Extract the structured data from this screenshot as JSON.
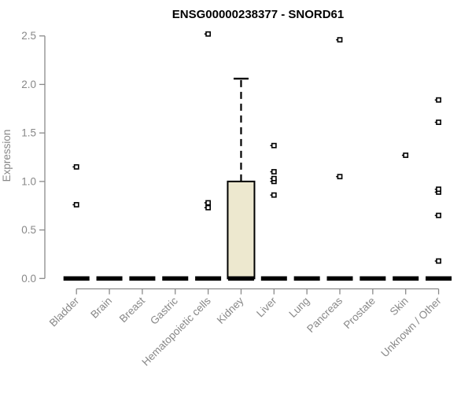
{
  "window": {
    "background": "#ffffff"
  },
  "chart_data": {
    "type": "boxplot",
    "title": "ENSG00000238377 - SNORD61",
    "xlabel": "",
    "ylabel": "Expression",
    "ylim": [
      0,
      2.5
    ],
    "yticks": [
      "0.0",
      "0.5",
      "1.0",
      "1.5",
      "2.0",
      "2.5"
    ],
    "grid": false,
    "legend": false,
    "categories": [
      "Bladder",
      "Brain",
      "Breast",
      "Gastric",
      "Hematopoietic cells",
      "Kidney",
      "Liver",
      "Lung",
      "Pancreas",
      "Prostate",
      "Skin",
      "Unknown / Other"
    ],
    "boxes": [
      {
        "category": "Bladder",
        "q1": 0,
        "median": 0,
        "q3": 0,
        "whisker_low": 0,
        "whisker_high": 0,
        "outliers": [
          0.76,
          1.15
        ]
      },
      {
        "category": "Brain",
        "q1": 0,
        "median": 0,
        "q3": 0,
        "whisker_low": 0,
        "whisker_high": 0,
        "outliers": []
      },
      {
        "category": "Breast",
        "q1": 0,
        "median": 0,
        "q3": 0,
        "whisker_low": 0,
        "whisker_high": 0,
        "outliers": []
      },
      {
        "category": "Gastric",
        "q1": 0,
        "median": 0,
        "q3": 0,
        "whisker_low": 0,
        "whisker_high": 0,
        "outliers": []
      },
      {
        "category": "Hematopoietic cells",
        "q1": 0,
        "median": 0,
        "q3": 0,
        "whisker_low": 0,
        "whisker_high": 0,
        "outliers": [
          0.73,
          0.78,
          2.52
        ]
      },
      {
        "category": "Kidney",
        "q1": 0,
        "median": 0,
        "q3": 1.0,
        "whisker_low": 0,
        "whisker_high": 2.06,
        "outliers": []
      },
      {
        "category": "Liver",
        "q1": 0,
        "median": 0,
        "q3": 0,
        "whisker_low": 0,
        "whisker_high": 0,
        "outliers": [
          0.86,
          1.0,
          1.03,
          1.1,
          1.37
        ]
      },
      {
        "category": "Lung",
        "q1": 0,
        "median": 0,
        "q3": 0,
        "whisker_low": 0,
        "whisker_high": 0,
        "outliers": []
      },
      {
        "category": "Pancreas",
        "q1": 0,
        "median": 0,
        "q3": 0,
        "whisker_low": 0,
        "whisker_high": 0,
        "outliers": [
          1.05,
          2.46
        ]
      },
      {
        "category": "Prostate",
        "q1": 0,
        "median": 0,
        "q3": 0,
        "whisker_low": 0,
        "whisker_high": 0,
        "outliers": []
      },
      {
        "category": "Skin",
        "q1": 0,
        "median": 0,
        "q3": 0,
        "whisker_low": 0,
        "whisker_high": 0,
        "outliers": [
          1.27
        ]
      },
      {
        "category": "Unknown / Other",
        "q1": 0,
        "median": 0,
        "q3": 0,
        "whisker_low": 0,
        "whisker_high": 0,
        "outliers": [
          0.18,
          0.65,
          0.89,
          0.92,
          1.61,
          1.84
        ]
      }
    ],
    "colors": {
      "box_fill": "#EDE8CF",
      "box_stroke": "#000000",
      "median": "#000000",
      "whisker": "#000000",
      "outlier_stroke": "#000000",
      "outlier_fill": "#ffffff",
      "axis": "#8a8a8a",
      "tick_text": "#888888",
      "title_text": "#000000",
      "background": "#ffffff"
    }
  }
}
